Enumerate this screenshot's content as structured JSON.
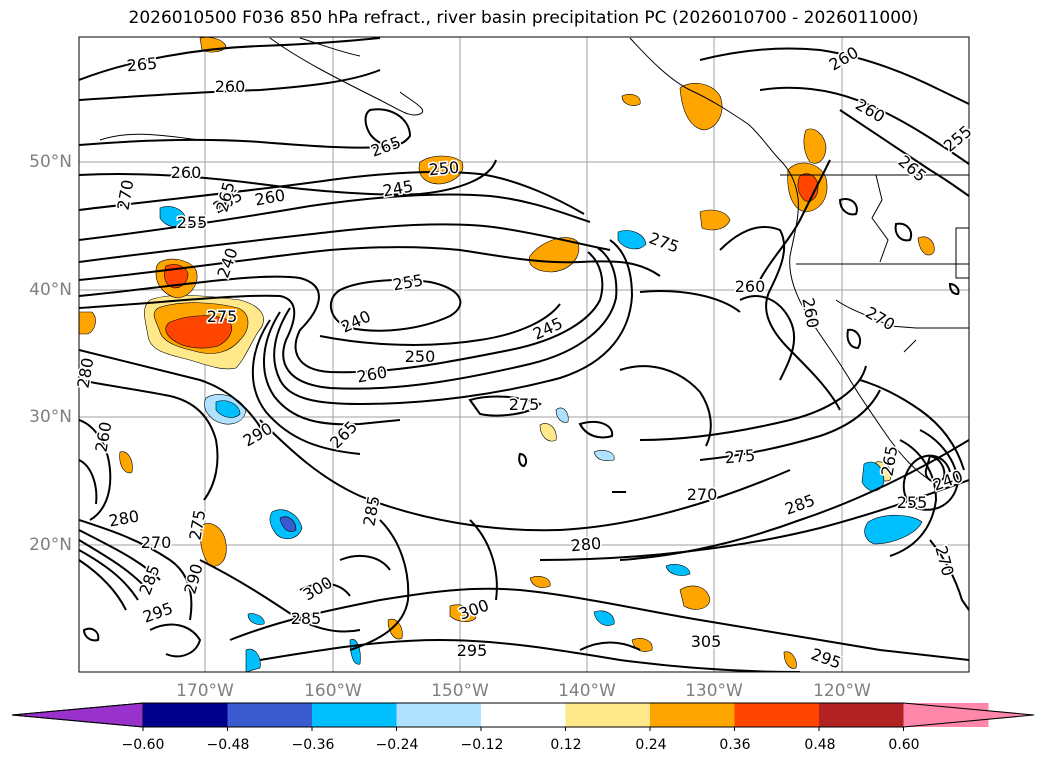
{
  "title": "2026010500 F036 850 hPa refract., river basin precipitation PC (2026010700 - 2026011000)",
  "lat_labels": [
    "50°N",
    "40°N",
    "30°N",
    "20°N"
  ],
  "lon_labels": [
    "170°W",
    "160°W",
    "150°W",
    "140°W",
    "130°W",
    "120°W"
  ],
  "contour_labels": [
    "265",
    "260",
    "265",
    "250",
    "260",
    "265",
    "245",
    "270",
    "255",
    "265",
    "260",
    "240",
    "255",
    "275",
    "245",
    "240",
    "250",
    "260",
    "280",
    "275",
    "290",
    "265",
    "260",
    "280",
    "270",
    "275",
    "285",
    "295",
    "290",
    "300",
    "285",
    "285",
    "295",
    "300",
    "305",
    "295",
    "280",
    "275",
    "270",
    "285",
    "265",
    "255",
    "240",
    "260",
    "275",
    "260",
    "270",
    "260",
    "260",
    "265",
    "255",
    "270"
  ],
  "colorbar": {
    "ticks": [
      "−0.60",
      "−0.48",
      "−0.36",
      "−0.24",
      "−0.12",
      "0.12",
      "0.24",
      "0.36",
      "0.48",
      "0.60"
    ],
    "colors": [
      "#9932cc",
      "#00008b",
      "#3a5bd0",
      "#00bfff",
      "#b0e2ff",
      "#ffffff",
      "#ffe98a",
      "#ffa500",
      "#ff4500",
      "#b22222",
      "#ff88aa",
      "#ff88aa"
    ]
  },
  "fill_colors": {
    "yellow": "#ffe98a",
    "orange": "#ffa500",
    "red": "#ff4500",
    "lightblue": "#b0e2ff",
    "blue": "#00bfff",
    "mid": "#3a5bd0",
    "purple": "#9932cc"
  }
}
